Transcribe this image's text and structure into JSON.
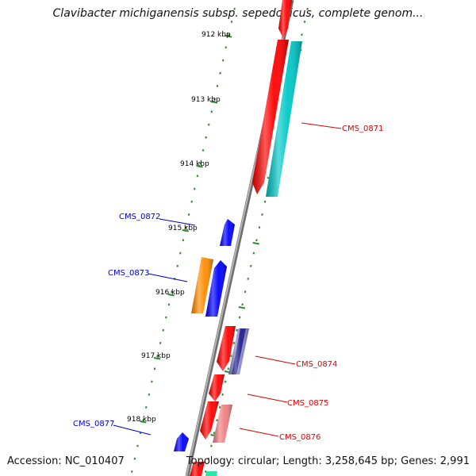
{
  "title": "Clavibacter michiganensis subsp. sepedonicus, complete genom...",
  "footer": {
    "accession": "Accession: NC_010407",
    "summary": "Topology: circular; Length: 3,258,645 bp; Genes: 2,991"
  },
  "colors": {
    "backbone": "#8c8c8c",
    "tick": "#2e8b2e",
    "forward_label": "#dd0000",
    "reverse_label": "#0000cc"
  },
  "scale_labels": [
    "912 kbp",
    "913 kbp",
    "914 kbp",
    "915 kbp",
    "916 kbp",
    "917 kbp",
    "918 kbp"
  ],
  "genes": [
    {
      "id": "g-top-red",
      "strand": "+",
      "color": "#ff0000",
      "label": ""
    },
    {
      "id": "g-red-long",
      "strand": "+",
      "color": "#ff0000",
      "label": ""
    },
    {
      "id": "g-cyan-long",
      "strand": "+",
      "color": "#00c8c8",
      "label": "CMS_0871"
    },
    {
      "id": "g-blue-small",
      "strand": "-",
      "color": "#0000ff",
      "label": "CMS_0872"
    },
    {
      "id": "g-orange",
      "strand": "-",
      "color": "#ff8c00",
      "label": "CMS_0873"
    },
    {
      "id": "g-blue-mid",
      "strand": "-",
      "color": "#0000ff",
      "label": ""
    },
    {
      "id": "g-red-a",
      "strand": "+",
      "color": "#ff0000",
      "label": ""
    },
    {
      "id": "g-navy",
      "strand": "+",
      "color": "#1c1c8c",
      "label": "CMS_0874"
    },
    {
      "id": "g-red-b",
      "strand": "+",
      "color": "#ff0000",
      "label": "CMS_0875"
    },
    {
      "id": "g-red-c",
      "strand": "+",
      "color": "#ff0000",
      "label": ""
    },
    {
      "id": "g-pink",
      "strand": "+",
      "color": "#f08080",
      "label": "CMS_0876"
    },
    {
      "id": "g-blue-bottom",
      "strand": "-",
      "color": "#0000ff",
      "label": "CMS_0877"
    },
    {
      "id": "g-red-bottom",
      "strand": "+",
      "color": "#ff0000",
      "label": ""
    },
    {
      "id": "g-teal-bottom",
      "strand": "+",
      "color": "#2ee6a8",
      "label": ""
    }
  ]
}
